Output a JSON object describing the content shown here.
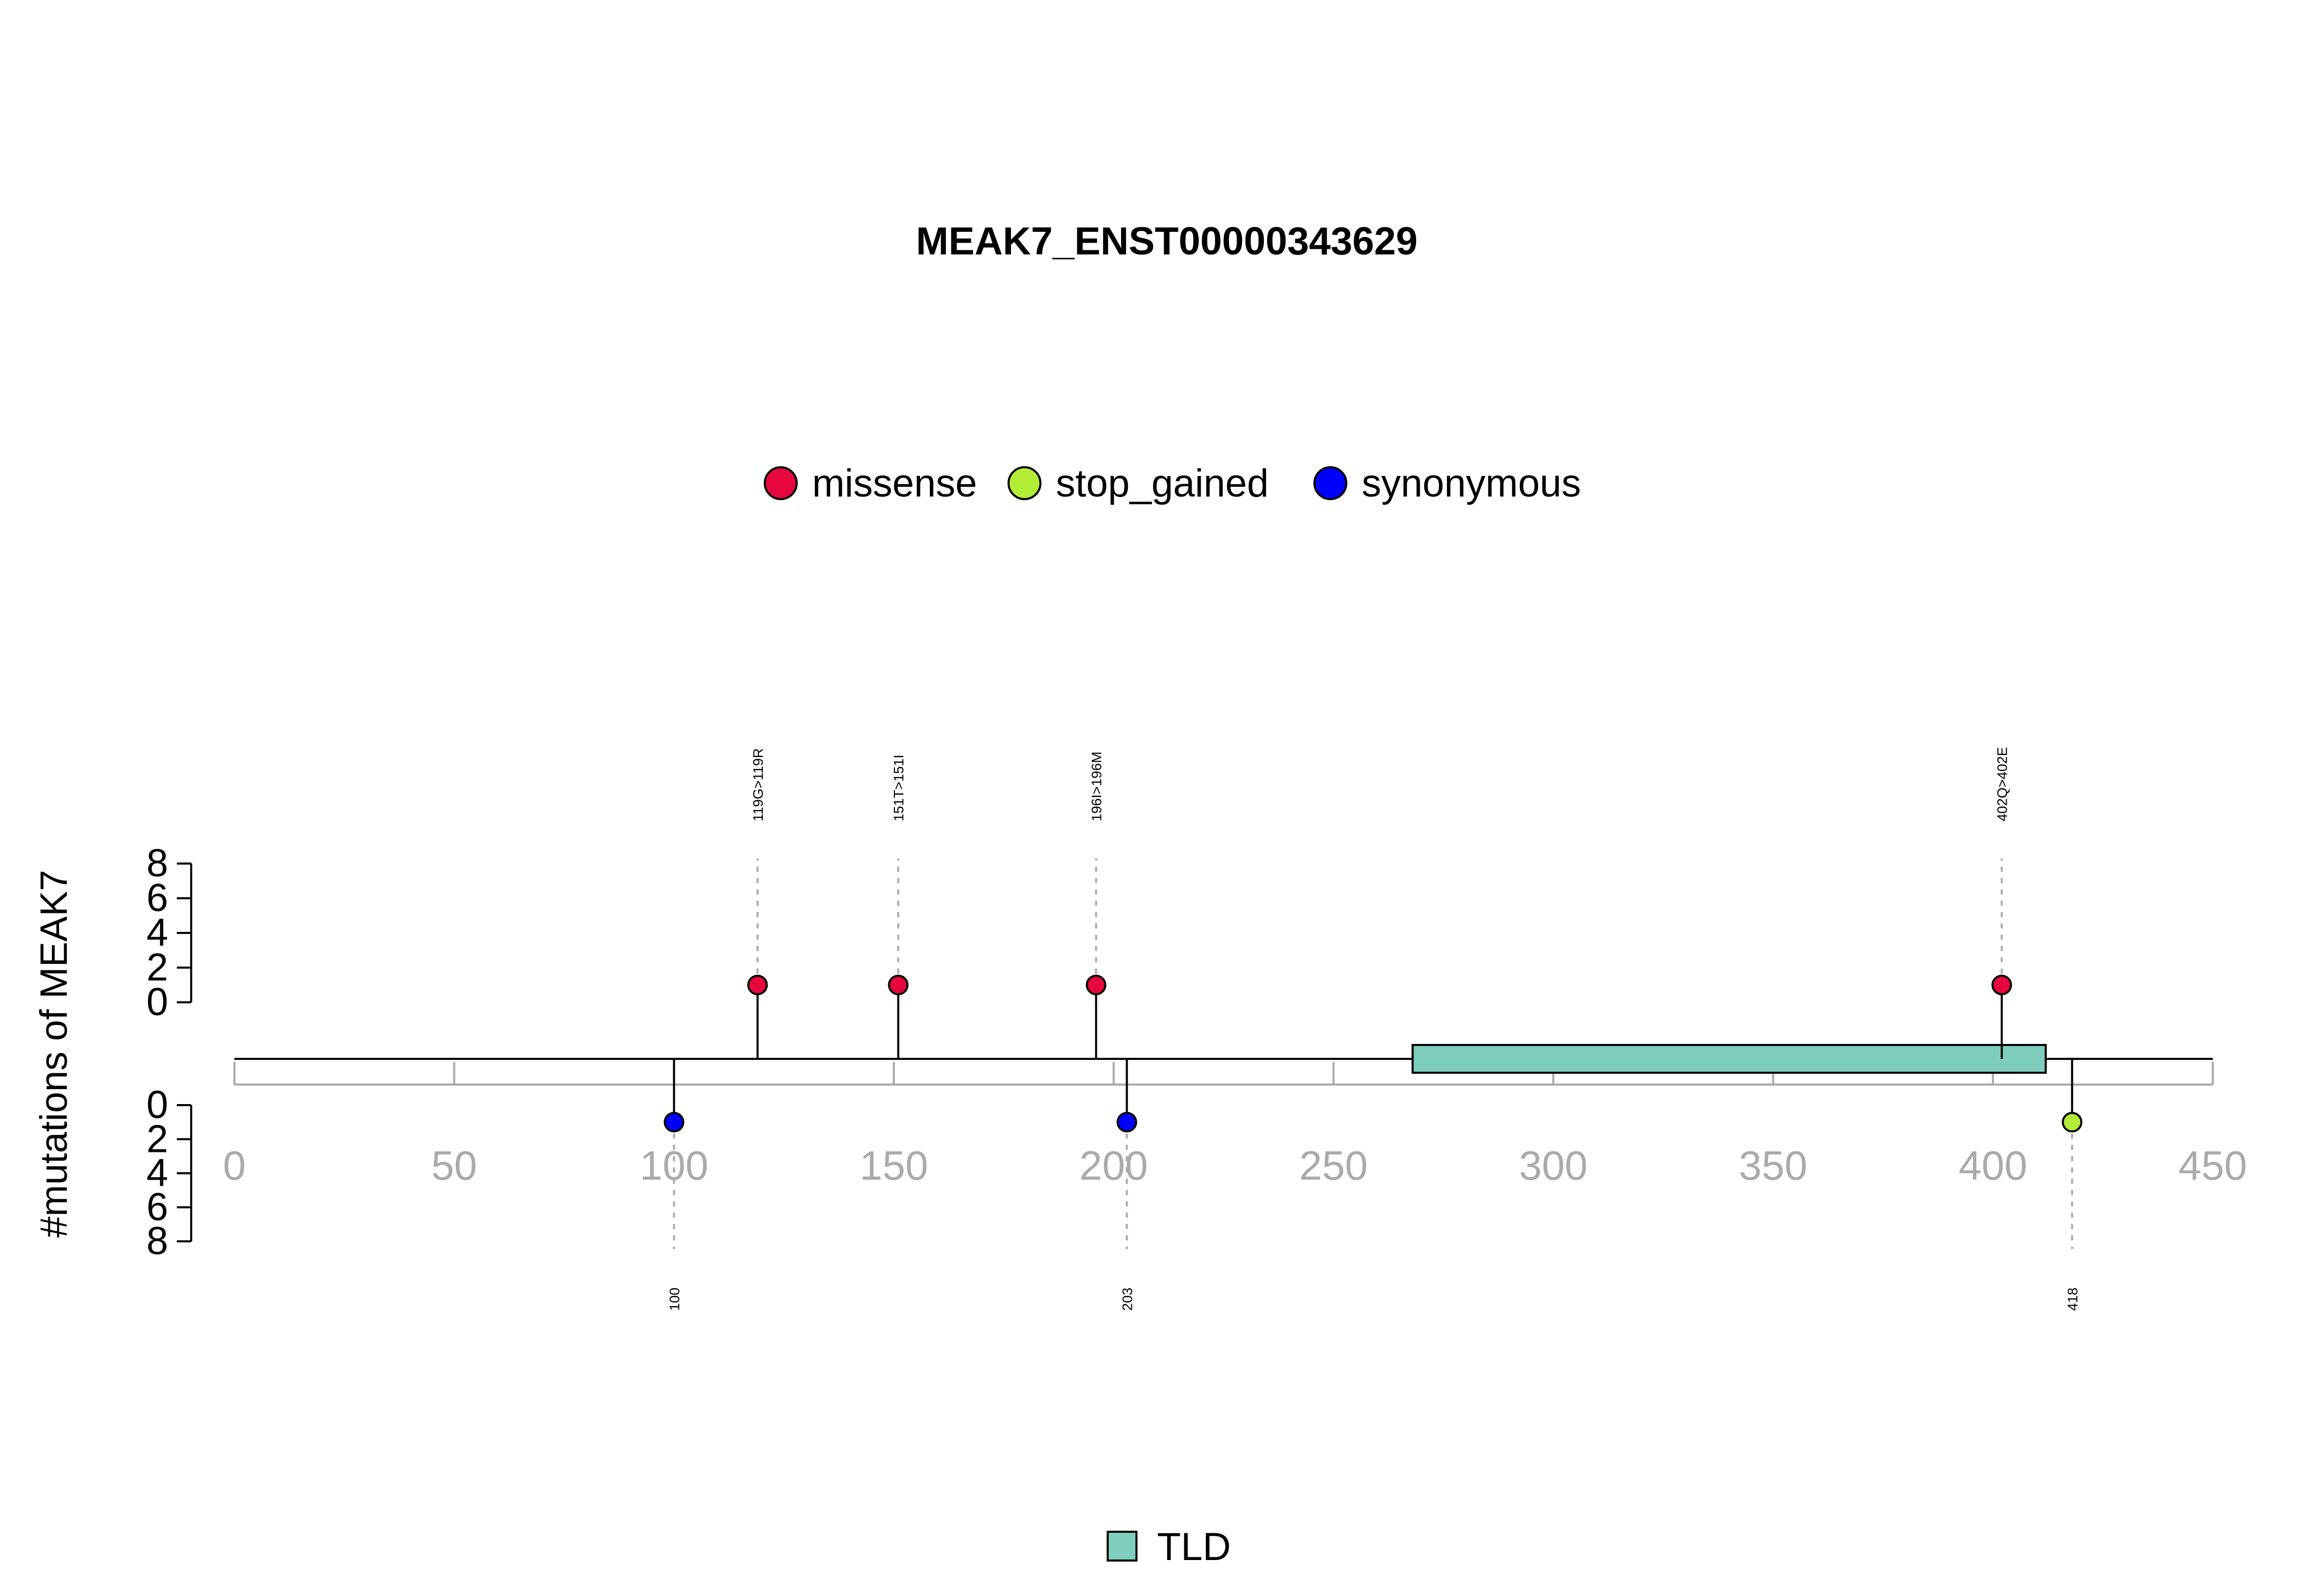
{
  "chart_data": {
    "type": "lollipop",
    "title": "MEAK7_ENST00000343629",
    "ylabel": "#mutations of MEAK7",
    "xlim": [
      0,
      450
    ],
    "x_ticks": [
      "0",
      "50",
      "100",
      "150",
      "200",
      "250",
      "300",
      "350",
      "400",
      "450"
    ],
    "y_ticks": [
      "0",
      "2",
      "4",
      "6",
      "8"
    ],
    "ylim": [
      0,
      8
    ],
    "legend": {
      "placement": "top-center",
      "entries": [
        {
          "name": "missense",
          "color": "#E5073D"
        },
        {
          "name": "stop_gained",
          "color": "#B2EC37"
        },
        {
          "name": "synonymous",
          "color": "#0000FF"
        }
      ]
    },
    "mutations_above": [
      {
        "position": 119,
        "count": 1,
        "type": "missense",
        "label": "119G>119R"
      },
      {
        "position": 151,
        "count": 1,
        "type": "missense",
        "label": "151T>151I"
      },
      {
        "position": 196,
        "count": 1,
        "type": "missense",
        "label": "196I>196M"
      },
      {
        "position": 402,
        "count": 1,
        "type": "missense",
        "label": "402Q>402E"
      }
    ],
    "mutations_below": [
      {
        "position": 100,
        "count": 1,
        "type": "synonymous",
        "label": "100"
      },
      {
        "position": 203,
        "count": 1,
        "type": "synonymous",
        "label": "203"
      },
      {
        "position": 418,
        "count": 1,
        "type": "stop_gained",
        "label": "418"
      }
    ],
    "domains": [
      {
        "name": "TLD",
        "start": 268,
        "end": 412,
        "color": "#7FCDBB"
      }
    ],
    "domain_legend": [
      {
        "name": "TLD",
        "color": "#7FCDBB"
      }
    ]
  }
}
